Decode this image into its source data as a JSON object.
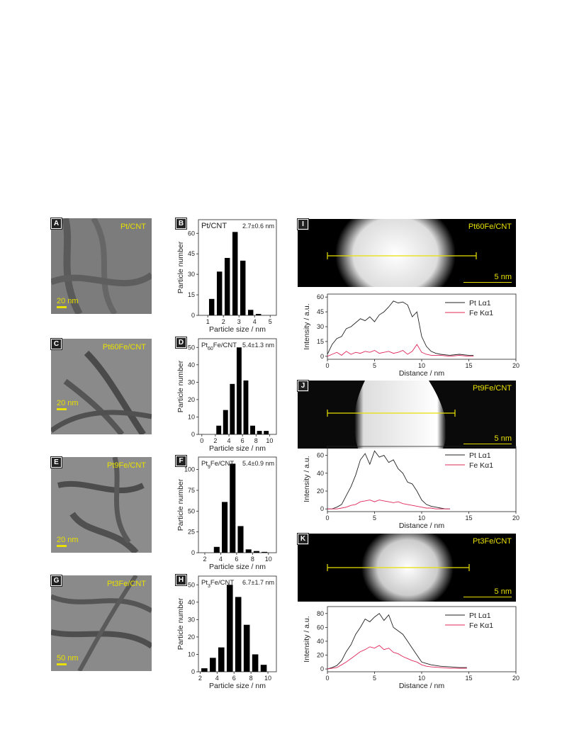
{
  "tem_panels": [
    {
      "letter": "A",
      "label": "Pt/CNT",
      "scale": "20 nm"
    },
    {
      "letter": "C",
      "label": "Pt60Fe/CNT",
      "scale": "20 nm"
    },
    {
      "letter": "E",
      "label": "Pt9Fe/CNT",
      "scale": "20 nm"
    },
    {
      "letter": "G",
      "label": "Pt3Fe/CNT",
      "scale": "50 nm"
    }
  ],
  "chart_data": [
    {
      "type": "bar",
      "panel": "B",
      "sample": "Pt/CNT",
      "stat": "2.7±0.6 nm",
      "xlabel": "Particle size / nm",
      "ylabel": "Particle number",
      "x": [
        1.25,
        1.75,
        2.25,
        2.75,
        3.25,
        3.75,
        4.25
      ],
      "values": [
        12,
        32,
        42,
        61,
        40,
        4,
        1
      ],
      "xlim": [
        0.4,
        5.4
      ],
      "xticks": [
        1,
        2,
        3,
        4,
        5
      ],
      "ylim": [
        0,
        70
      ],
      "yticks": [
        0,
        15,
        30,
        45,
        60
      ]
    },
    {
      "type": "bar",
      "panel": "D",
      "sample": "Pt60Fe/CNT",
      "stat": "5.4±1.3 nm",
      "xlabel": "Particle size / nm",
      "ylabel": "Particle number",
      "x": [
        2.5,
        3.5,
        4.5,
        5.5,
        6.5,
        7.5,
        8.5,
        9.5
      ],
      "values": [
        5,
        14,
        29,
        50,
        31,
        5,
        2,
        2
      ],
      "xlim": [
        -0.5,
        11
      ],
      "xticks": [
        0,
        2,
        4,
        6,
        8,
        10
      ],
      "ylim": [
        0,
        55
      ],
      "yticks": [
        0,
        10,
        20,
        30,
        40,
        50
      ],
      "xtick_labels": [
        "0",
        "2",
        "4",
        "6",
        "8",
        "10"
      ]
    },
    {
      "type": "bar",
      "panel": "F",
      "sample": "Pt9Fe/CNT",
      "stat": "5.4±0.9 nm",
      "xlabel": "Particle size / nm",
      "ylabel": "Particle number",
      "x": [
        3.5,
        4.5,
        5.5,
        6.5,
        7.5,
        8.5,
        9.5
      ],
      "values": [
        7,
        61,
        107,
        32,
        4,
        2,
        1
      ],
      "xlim": [
        1.2,
        11
      ],
      "xticks": [
        2,
        4,
        6,
        8,
        10
      ],
      "ylim": [
        0,
        115
      ],
      "yticks": [
        0,
        25,
        50,
        75,
        100
      ]
    },
    {
      "type": "bar",
      "panel": "H",
      "sample": "Pt3Fe/CNT",
      "stat": "6.7±1.7 nm",
      "xlabel": "Particle size / nm",
      "ylabel": "Particle number",
      "x": [
        2.5,
        3.5,
        4.5,
        5.5,
        6.5,
        7.5,
        8.5,
        9.5
      ],
      "values": [
        2,
        8,
        14,
        50,
        43,
        27,
        10,
        4
      ],
      "xlim": [
        1.8,
        11
      ],
      "xticks": [
        2,
        4,
        6,
        8,
        10
      ],
      "ylim": [
        0,
        55
      ],
      "yticks": [
        0,
        10,
        20,
        30,
        40,
        50
      ]
    },
    {
      "type": "line",
      "panel": "I-profile",
      "xlabel": "Distance / nm",
      "ylabel": "Intensity / a.u.",
      "xlim": [
        0,
        20
      ],
      "xticks": [
        0,
        5,
        10,
        15,
        20
      ],
      "ylim": [
        -3,
        63
      ],
      "yticks": [
        0,
        15,
        30,
        45,
        60
      ],
      "series": [
        {
          "name": "Pt Lα1",
          "color": "#222222",
          "x": [
            0,
            0.5,
            1,
            1.5,
            2,
            2.5,
            3,
            3.5,
            4,
            4.5,
            5,
            5.5,
            6,
            6.5,
            7,
            7.5,
            8,
            8.5,
            9,
            9.5,
            10,
            10.5,
            11,
            11.5,
            12,
            13,
            14,
            15,
            15.5
          ],
          "y": [
            2,
            12,
            18,
            20,
            28,
            30,
            34,
            38,
            36,
            40,
            35,
            42,
            45,
            50,
            56,
            54,
            55,
            52,
            40,
            45,
            20,
            10,
            5,
            3,
            2,
            1,
            2,
            1,
            1
          ]
        },
        {
          "name": "Fe Kα1",
          "color": "#e0285a",
          "x": [
            0,
            0.5,
            1,
            1.5,
            2,
            2.5,
            3,
            3.5,
            4,
            4.5,
            5,
            5.5,
            6,
            6.5,
            7,
            7.5,
            8,
            8.5,
            9,
            9.5,
            10,
            10.5,
            11,
            12,
            13,
            14,
            15,
            15.5
          ],
          "y": [
            0,
            2,
            4,
            1,
            5,
            2,
            4,
            3,
            5,
            4,
            6,
            3,
            4,
            5,
            3,
            4,
            6,
            2,
            5,
            12,
            4,
            2,
            1,
            1,
            0,
            1,
            0,
            0
          ]
        }
      ]
    },
    {
      "type": "line",
      "panel": "J-profile",
      "xlabel": "Distance / nm",
      "ylabel": "Intensity / a.u.",
      "xlim": [
        0,
        20
      ],
      "xticks": [
        0,
        5,
        10,
        15,
        20
      ],
      "ylim": [
        -3,
        70
      ],
      "yticks": [
        0,
        20,
        40,
        60
      ],
      "series": [
        {
          "name": "Pt Lα1",
          "color": "#222222",
          "x": [
            0,
            0.5,
            1,
            1.5,
            2,
            2.5,
            3,
            3.5,
            4,
            4.5,
            5,
            5.5,
            6,
            6.5,
            7,
            7.5,
            8,
            8.5,
            9,
            9.5,
            10,
            10.5,
            11,
            11.5,
            12,
            12.5,
            13
          ],
          "y": [
            0,
            0,
            2,
            5,
            15,
            25,
            38,
            55,
            62,
            50,
            65,
            58,
            60,
            52,
            55,
            45,
            40,
            30,
            28,
            20,
            10,
            5,
            3,
            2,
            1,
            0,
            0
          ]
        },
        {
          "name": "Fe Kα1",
          "color": "#e0285a",
          "x": [
            0,
            0.5,
            1,
            1.5,
            2,
            2.5,
            3,
            3.5,
            4,
            4.5,
            5,
            5.5,
            6,
            6.5,
            7,
            7.5,
            8,
            8.5,
            9,
            9.5,
            10,
            10.5,
            11,
            11.5,
            12,
            12.5,
            13
          ],
          "y": [
            0,
            0,
            0,
            1,
            2,
            4,
            5,
            8,
            9,
            10,
            8,
            10,
            9,
            8,
            7,
            8,
            6,
            5,
            4,
            3,
            2,
            1,
            1,
            0,
            0,
            0,
            0
          ]
        }
      ]
    },
    {
      "type": "line",
      "panel": "K-profile",
      "xlabel": "Distance / nm",
      "ylabel": "Intensity / a.u.",
      "xlim": [
        0,
        20
      ],
      "xticks": [
        0,
        5,
        10,
        15,
        20
      ],
      "ylim": [
        -4,
        90
      ],
      "yticks": [
        0,
        20,
        40,
        60,
        80
      ],
      "series": [
        {
          "name": "Pt Lα1",
          "color": "#222222",
          "x": [
            0,
            0.5,
            1,
            1.5,
            2,
            2.5,
            3,
            3.5,
            4,
            4.5,
            5,
            5.5,
            6,
            6.5,
            7,
            7.5,
            8,
            8.5,
            9,
            9.5,
            10,
            10.5,
            11,
            12,
            13,
            14,
            14.8
          ],
          "y": [
            0,
            2,
            5,
            12,
            25,
            35,
            50,
            60,
            72,
            68,
            75,
            80,
            70,
            78,
            60,
            55,
            50,
            40,
            30,
            20,
            10,
            8,
            6,
            4,
            3,
            2,
            2
          ]
        },
        {
          "name": "Fe Kα1",
          "color": "#e0285a",
          "x": [
            0,
            0.5,
            1,
            1.5,
            2,
            2.5,
            3,
            3.5,
            4,
            4.5,
            5,
            5.5,
            6,
            6.5,
            7,
            7.5,
            8,
            8.5,
            9,
            9.5,
            10,
            10.5,
            11,
            12,
            13,
            14,
            14.8
          ],
          "y": [
            0,
            1,
            2,
            6,
            10,
            15,
            20,
            25,
            28,
            32,
            30,
            34,
            28,
            30,
            24,
            22,
            18,
            15,
            12,
            10,
            6,
            4,
            3,
            2,
            1,
            1,
            1
          ]
        }
      ]
    }
  ],
  "stem_panels": [
    {
      "letter": "I",
      "label": "Pt60Fe/CNT",
      "scale": "5 nm"
    },
    {
      "letter": "J",
      "label": "Pt9Fe/CNT",
      "scale": "5 nm"
    },
    {
      "letter": "K",
      "label": "Pt3Fe/CNT",
      "scale": "5 nm"
    }
  ]
}
